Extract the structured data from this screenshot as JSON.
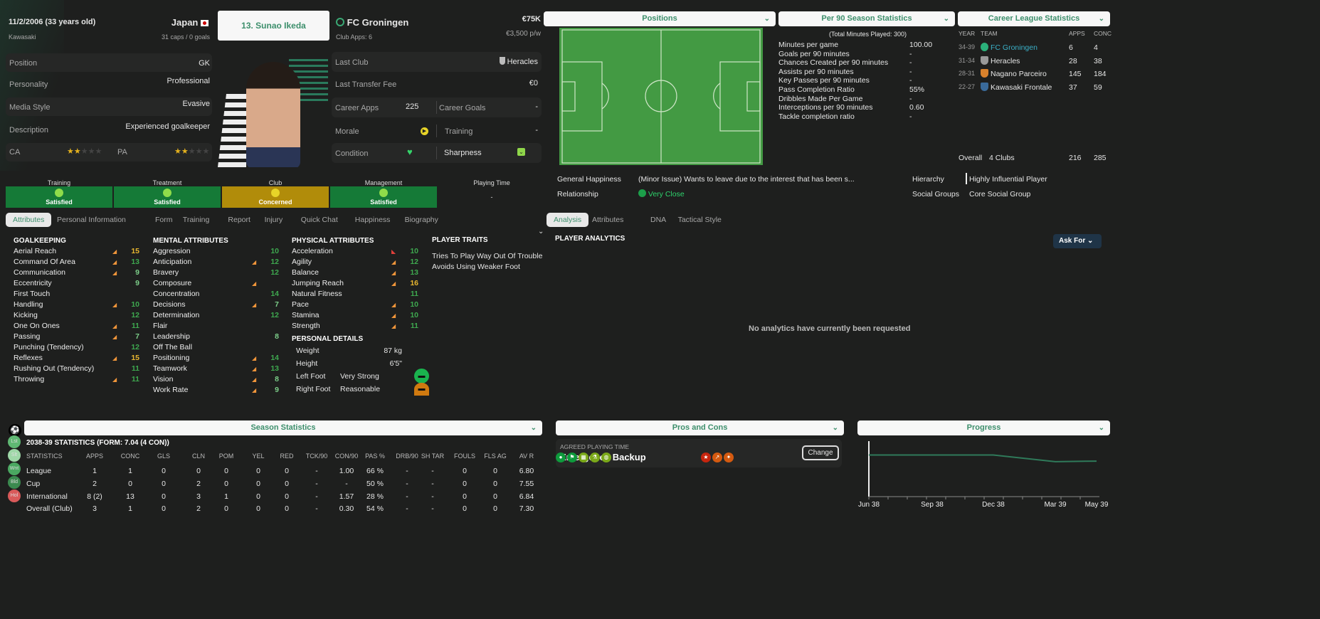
{
  "player": {
    "dob": "11/2/2006 (33 years old)",
    "nation": "Japan",
    "birthplace": "Kawasaki",
    "caps": "31 caps / 0 goals",
    "name": "13. Sunao Ikeda",
    "info": [
      {
        "label": "Position",
        "value": "GK"
      },
      {
        "label": "Personality",
        "value": "Professional"
      },
      {
        "label": "Media Style",
        "value": "Evasive"
      },
      {
        "label": "Description",
        "value": "Experienced goalkeeper"
      }
    ],
    "ca_label": "CA",
    "pa_label": "PA",
    "ca_stars": 2,
    "pa_stars": 2,
    "stars_max": 5
  },
  "club": {
    "name": "FC Groningen",
    "apps": "Club Apps: 6",
    "value": "€75K",
    "wage": "€3,500 p/w",
    "last_club_label": "Last Club",
    "last_club": "Heracles",
    "fee_label": "Last Transfer Fee",
    "fee": "€0",
    "career_apps_label": "Career Apps",
    "career_apps": "225",
    "career_goals_label": "Career Goals",
    "career_goals": "-",
    "morale_label": "Morale",
    "training_label": "Training",
    "training": "-",
    "condition_label": "Condition",
    "sharpness_label": "Sharpness"
  },
  "happiness": [
    {
      "label": "Training",
      "status": "Satisfied",
      "color": "#157a37"
    },
    {
      "label": "Treatment",
      "status": "Satisfied",
      "color": "#157a37"
    },
    {
      "label": "Club",
      "status": "Concerned",
      "color": "#b18c0a"
    },
    {
      "label": "Management",
      "status": "Satisfied",
      "color": "#157a37"
    }
  ],
  "playing_time": {
    "label": "Playing Time",
    "value": "-"
  },
  "left_tabs": [
    "Attributes",
    "Personal Information",
    "Form",
    "Training",
    "Report",
    "Injury",
    "Quick Chat",
    "Happiness",
    "Biography"
  ],
  "goalkeeping": {
    "title": "GOALKEEPING",
    "items": [
      [
        "Aerial Reach",
        "15",
        "up"
      ],
      [
        "Command Of Area",
        "13",
        "up"
      ],
      [
        "Communication",
        "9",
        "up"
      ],
      [
        "Eccentricity",
        "9",
        ""
      ],
      [
        "First Touch",
        "",
        ""
      ],
      [
        "Handling",
        "10",
        "up"
      ],
      [
        "Kicking",
        "12",
        ""
      ],
      [
        "One On Ones",
        "11",
        "up"
      ],
      [
        "Passing",
        "7",
        "up"
      ],
      [
        "Punching (Tendency)",
        "12",
        ""
      ],
      [
        "Reflexes",
        "15",
        "up"
      ],
      [
        "Rushing Out (Tendency)",
        "11",
        ""
      ],
      [
        "Throwing",
        "11",
        "up"
      ]
    ]
  },
  "mental": {
    "title": "MENTAL ATTRIBUTES",
    "items": [
      [
        "Aggression",
        "10",
        ""
      ],
      [
        "Anticipation",
        "12",
        "up"
      ],
      [
        "Bravery",
        "12",
        ""
      ],
      [
        "Composure",
        "",
        "up"
      ],
      [
        "Concentration",
        "14",
        ""
      ],
      [
        "Decisions",
        "7",
        "up"
      ],
      [
        "Determination",
        "12",
        ""
      ],
      [
        "Flair",
        "",
        ""
      ],
      [
        "Leadership",
        "8",
        ""
      ],
      [
        "Off The Ball",
        "",
        ""
      ],
      [
        "Positioning",
        "14",
        "up"
      ],
      [
        "Teamwork",
        "13",
        "up"
      ],
      [
        "Vision",
        "8",
        "up"
      ],
      [
        "Work Rate",
        "9",
        "up"
      ]
    ]
  },
  "physical": {
    "title": "PHYSICAL ATTRIBUTES",
    "items": [
      [
        "Acceleration",
        "10",
        "down"
      ],
      [
        "Agility",
        "12",
        "up"
      ],
      [
        "Balance",
        "13",
        "up"
      ],
      [
        "Jumping Reach",
        "16",
        "up"
      ],
      [
        "Natural Fitness",
        "11",
        ""
      ],
      [
        "Pace",
        "10",
        "up"
      ],
      [
        "Stamina",
        "10",
        "up"
      ],
      [
        "Strength",
        "11",
        "up"
      ]
    ]
  },
  "personal": {
    "title": "PERSONAL DETAILS",
    "weight_label": "Weight",
    "weight": "87 kg",
    "height_label": "Height",
    "height": "6'5\"",
    "left_label": "Left Foot",
    "left": "Very Strong",
    "right_label": "Right Foot",
    "right": "Reasonable"
  },
  "traits": {
    "title": "PLAYER TRAITS",
    "items": [
      "Tries To Play Way Out Of Trouble",
      "Avoids Using Weaker Foot"
    ]
  },
  "season": {
    "header": "Season Statistics",
    "title": "2038-39 STATISTICS (FORM: 7.04 (4 CON))",
    "side": [
      "Lst",
      "Slt",
      "Wnt",
      "Bld",
      "Hol"
    ],
    "columns": [
      "STATISTICS",
      "APPS",
      "CONC",
      "GLS",
      "CLN",
      "POM",
      "YEL",
      "RED",
      "TCK/90",
      "CON/90",
      "PAS %",
      "DRB/90",
      "SH TAR",
      "FOULS",
      "FLS AG",
      "AV R"
    ],
    "rows": [
      [
        "League",
        "1",
        "1",
        "0",
        "0",
        "0",
        "0",
        "0",
        "-",
        "1.00",
        "66 %",
        "-",
        "-",
        "0",
        "0",
        "6.80"
      ],
      [
        "Cup",
        "2",
        "0",
        "0",
        "2",
        "0",
        "0",
        "0",
        "-",
        "-",
        "50 %",
        "-",
        "-",
        "0",
        "0",
        "7.55"
      ],
      [
        "International",
        "8 (2)",
        "13",
        "0",
        "3",
        "1",
        "0",
        "0",
        "-",
        "1.57",
        "28 %",
        "-",
        "-",
        "0",
        "0",
        "6.84"
      ],
      [
        "Overall (Club)",
        "3",
        "1",
        "0",
        "2",
        "0",
        "0",
        "0",
        "-",
        "0.30",
        "54 %",
        "-",
        "-",
        "0",
        "0",
        "7.30"
      ]
    ]
  },
  "right_headers": {
    "positions": "Positions",
    "per90": "Per 90 Season Statistics",
    "career": "Career League Statistics"
  },
  "per90": {
    "total": "(Total Minutes Played: 300)",
    "items": [
      [
        "Minutes per game",
        "100.00"
      ],
      [
        "Goals per 90 minutes",
        "-"
      ],
      [
        "Chances Created per 90 minutes",
        "-"
      ],
      [
        "Assists per 90 minutes",
        "-"
      ],
      [
        "Key Passes per 90 minutes",
        "-"
      ],
      [
        "Pass Completion Ratio",
        "55%"
      ],
      [
        "Dribbles Made Per Game",
        "-"
      ],
      [
        "Interceptions per 90 minutes",
        "0.60"
      ],
      [
        "Tackle completion ratio",
        "-"
      ]
    ]
  },
  "career": {
    "columns": [
      "YEAR",
      "TEAM",
      "APPS",
      "CONC"
    ],
    "rows": [
      [
        "34-39",
        "FC Groningen",
        "6",
        "4"
      ],
      [
        "31-34",
        "Heracles",
        "28",
        "38"
      ],
      [
        "28-31",
        "Nagano Parceiro",
        "145",
        "184"
      ],
      [
        "22-27",
        "Kawasaki Frontale",
        "37",
        "59"
      ]
    ],
    "overall": [
      "Overall",
      "4 Clubs",
      "216",
      "285"
    ]
  },
  "status": {
    "gh_label": "General Happiness",
    "gh": "(Minor Issue) Wants to leave due to the interest that has been s...",
    "rel_label": "Relationship",
    "rel": "Very Close",
    "hier_label": "Hierarchy",
    "hier": "Highly Influential Player",
    "sg_label": "Social Groups",
    "sg": "Core Social Group"
  },
  "right_tabs": [
    "Analysis",
    "Attributes",
    "DNA",
    "Tactical Style"
  ],
  "analytics": {
    "title": "PLAYER ANALYTICS",
    "ask": "Ask For",
    "empty": "No analytics have currently been requested"
  },
  "pros": {
    "header": "Pros and Cons",
    "apt_label": "AGREED PLAYING TIME",
    "apt": "Emergency Backup",
    "change": "Change"
  },
  "progress": {
    "header": "Progress",
    "chart_data": {
      "type": "line",
      "x": [
        "Jun 38",
        "Sep 38",
        "Dec 38",
        "Mar 39",
        "May 39"
      ],
      "values": [
        0.75,
        0.75,
        0.75,
        0.63,
        0.64
      ]
    }
  },
  "colors": {
    "accent": "#3d8f6c",
    "satisfied": "#157a37",
    "concerned": "#b18c0a",
    "high": "#e8b630",
    "good": "#3ea84f"
  }
}
